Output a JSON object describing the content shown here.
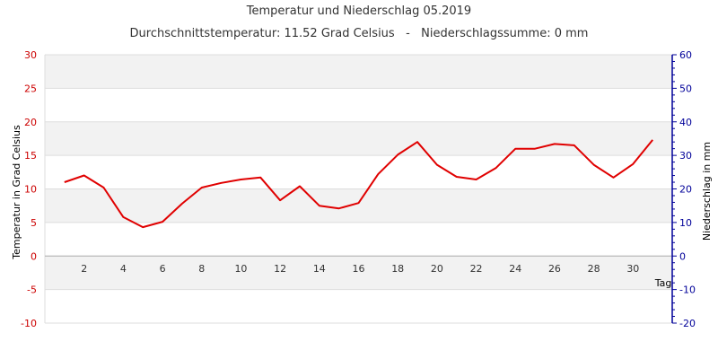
{
  "chart_data": {
    "type": "line",
    "title": "Temperatur und Niederschlag 05.2019",
    "subtitle": "Durchschnittstemperatur: 11.52 Grad Celsius   -   Niederschlagssumme: 0 mm",
    "xlabel": "Tag",
    "ylabel_left": "Temperatur in Grad Celsius",
    "ylabel_right": "Niederschlag in mm",
    "ylim_left": [
      -10,
      30
    ],
    "ylim_right": [
      -20,
      60
    ],
    "xlim": [
      0,
      32
    ],
    "x_ticks": [
      2,
      4,
      6,
      8,
      10,
      12,
      14,
      16,
      18,
      20,
      22,
      24,
      26,
      28,
      30
    ],
    "y_ticks_left": [
      -10,
      -5,
      0,
      5,
      10,
      15,
      20,
      25,
      30
    ],
    "y_ticks_right": [
      -20,
      -10,
      0,
      10,
      20,
      30,
      40,
      50,
      60
    ],
    "grid": true,
    "series": [
      {
        "x": [
          1,
          2,
          3,
          4,
          5,
          6,
          7,
          8,
          9,
          10,
          11,
          12,
          13,
          14,
          15,
          16,
          17,
          18,
          19,
          20,
          21,
          22,
          23,
          24,
          25,
          26,
          27,
          28,
          29,
          30,
          31
        ],
        "values": [
          11.0,
          12.0,
          10.2,
          5.8,
          4.3,
          5.1,
          7.8,
          10.2,
          10.9,
          11.4,
          11.7,
          8.3,
          10.4,
          7.5,
          7.1,
          7.9,
          12.2,
          15.1,
          17.0,
          13.6,
          11.8,
          11.4,
          13.1,
          16.0,
          16.0,
          16.7,
          16.5,
          13.6,
          11.7,
          13.7,
          17.3
        ],
        "color": "#e00000"
      }
    ],
    "colors": {
      "left_axis": "#cc0000",
      "right_axis": "#000099",
      "band": "#f2f2f2",
      "grid": "#dddddd"
    }
  }
}
